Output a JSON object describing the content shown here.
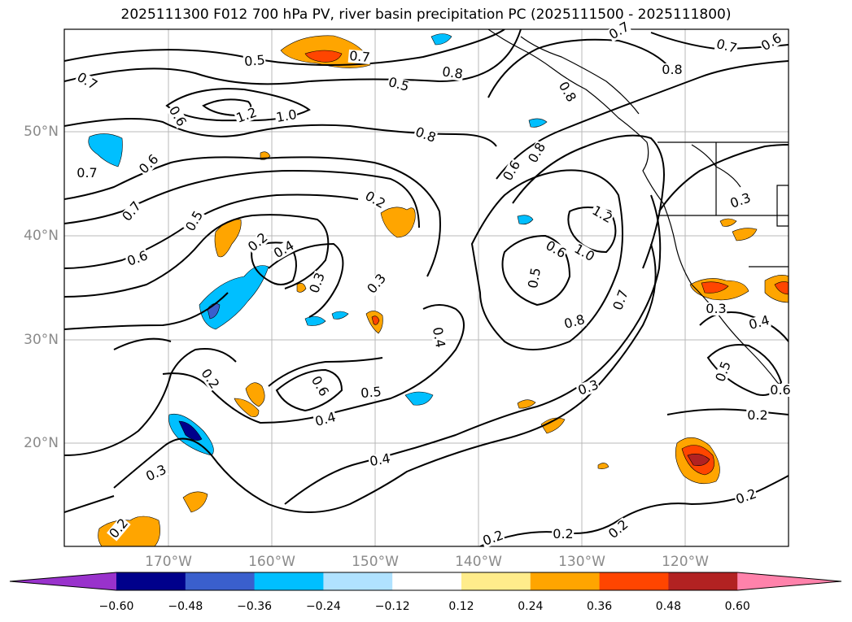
{
  "title": "2025111300 F012 700 hPa PV, river basin precipitation PC (2025111500 - 2025111800)",
  "map": {
    "lat_labels": [
      "50°N",
      "40°N",
      "30°N",
      "20°N"
    ],
    "lon_labels": [
      "170°W",
      "160°W",
      "150°W",
      "140°W",
      "130°W",
      "120°W"
    ],
    "contour_labels": [
      "0.5",
      "0.6",
      "0.7",
      "0.8",
      "0.5",
      "0.8",
      "1.2",
      "1.0",
      "0.8",
      "0.8",
      "0.7",
      "0.6",
      "0.7",
      "0.7",
      "0.6",
      "0.5",
      "0.6",
      "0.2",
      "0.4",
      "0.2",
      "0.3",
      "0.3",
      "0.8",
      "1.2",
      "1.0",
      "0.6",
      "0.5",
      "0.8",
      "0.7",
      "0.4",
      "0.6",
      "0.5",
      "0.4",
      "0.2",
      "0.3",
      "0.3",
      "0.3",
      "0.3",
      "0.4",
      "0.5",
      "0.6",
      "0.2",
      "0.4",
      "0.2",
      "0.2",
      "0.2",
      "0.2",
      "0.2",
      "0.7",
      "0.7",
      "0.6"
    ]
  },
  "colorbar": {
    "ticks": [
      "−0.60",
      "−0.48",
      "−0.36",
      "−0.24",
      "−0.12",
      "0.12",
      "0.24",
      "0.36",
      "0.48",
      "0.60"
    ],
    "colors": [
      "#9932cc",
      "#00008b",
      "#3a5fcd",
      "#00bfff",
      "#b0e2ff",
      "#ffffff",
      "#ffec8b",
      "#ffa500",
      "#ff4500",
      "#b22222",
      "#ff82ab"
    ]
  }
}
